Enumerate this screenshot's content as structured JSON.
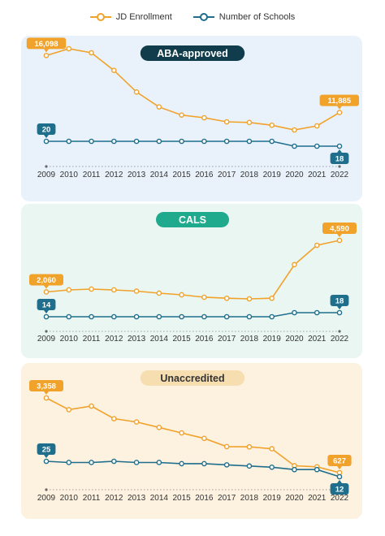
{
  "legend": {
    "items": [
      {
        "label": "JD Enrollment",
        "color": "#f0a22b"
      },
      {
        "label": "Number of Schools",
        "color": "#1f6e8c"
      }
    ]
  },
  "chart_data": [
    {
      "type": "line",
      "title": "ABA-approved",
      "title_bg": "#103c4c",
      "title_color": "#ffffff",
      "panel_bg": "#e9f2fb",
      "x": [
        "2009",
        "2010",
        "2011",
        "2012",
        "2013",
        "2014",
        "2015",
        "2016",
        "2017",
        "2018",
        "2019",
        "2020",
        "2021",
        "2022"
      ],
      "series": [
        {
          "name": "JD Enrollment",
          "color": "#f0a22b",
          "values": [
            16098,
            16600,
            16300,
            15000,
            13400,
            12300,
            11700,
            11500,
            11200,
            11150,
            10950,
            10600,
            10900,
            11885
          ],
          "labels": {
            "0": "16,098",
            "13": "11,885"
          }
        },
        {
          "name": "Number of Schools",
          "color": "#1f6e8c",
          "values": [
            20,
            20,
            20,
            20,
            20,
            20,
            20,
            20,
            20,
            20,
            20,
            18,
            18,
            18
          ],
          "labels": {
            "0": "20",
            "13": "18"
          }
        }
      ]
    },
    {
      "type": "line",
      "title": "CALS",
      "title_bg": "#1faa8e",
      "title_color": "#ffffff",
      "panel_bg": "#eaf6f1",
      "x": [
        "2009",
        "2010",
        "2011",
        "2012",
        "2013",
        "2014",
        "2015",
        "2016",
        "2017",
        "2018",
        "2019",
        "2020",
        "2021",
        "2022"
      ],
      "series": [
        {
          "name": "JD Enrollment",
          "color": "#f0a22b",
          "values": [
            2060,
            2160,
            2200,
            2160,
            2100,
            2000,
            1920,
            1800,
            1750,
            1720,
            1750,
            3400,
            4350,
            4590
          ],
          "labels": {
            "0": "2,060",
            "13": "4,590"
          }
        },
        {
          "name": "Number of Schools",
          "color": "#1f6e8c",
          "values": [
            14,
            14,
            14,
            14,
            14,
            14,
            14,
            14,
            14,
            14,
            14,
            18,
            18,
            18
          ],
          "labels": {
            "0": "14",
            "13": "18"
          }
        }
      ]
    },
    {
      "type": "line",
      "title": "Unaccredited",
      "title_bg": "#f7deb1",
      "title_color": "#333333",
      "panel_bg": "#fdf1e0",
      "x": [
        "2009",
        "2010",
        "2011",
        "2012",
        "2013",
        "2014",
        "2015",
        "2016",
        "2017",
        "2018",
        "2019",
        "2020",
        "2021",
        "2022"
      ],
      "series": [
        {
          "name": "JD Enrollment",
          "color": "#f0a22b",
          "values": [
            3358,
            2930,
            3060,
            2600,
            2480,
            2280,
            2080,
            1880,
            1580,
            1570,
            1500,
            880,
            840,
            627
          ],
          "labels": {
            "0": "3,358",
            "13": "627"
          }
        },
        {
          "name": "Number of Schools",
          "color": "#1f6e8c",
          "values": [
            25,
            24,
            24,
            25,
            24,
            24,
            23,
            23,
            22,
            21,
            20,
            18,
            18,
            12
          ],
          "labels": {
            "0": "25",
            "13": "12"
          }
        }
      ]
    }
  ]
}
